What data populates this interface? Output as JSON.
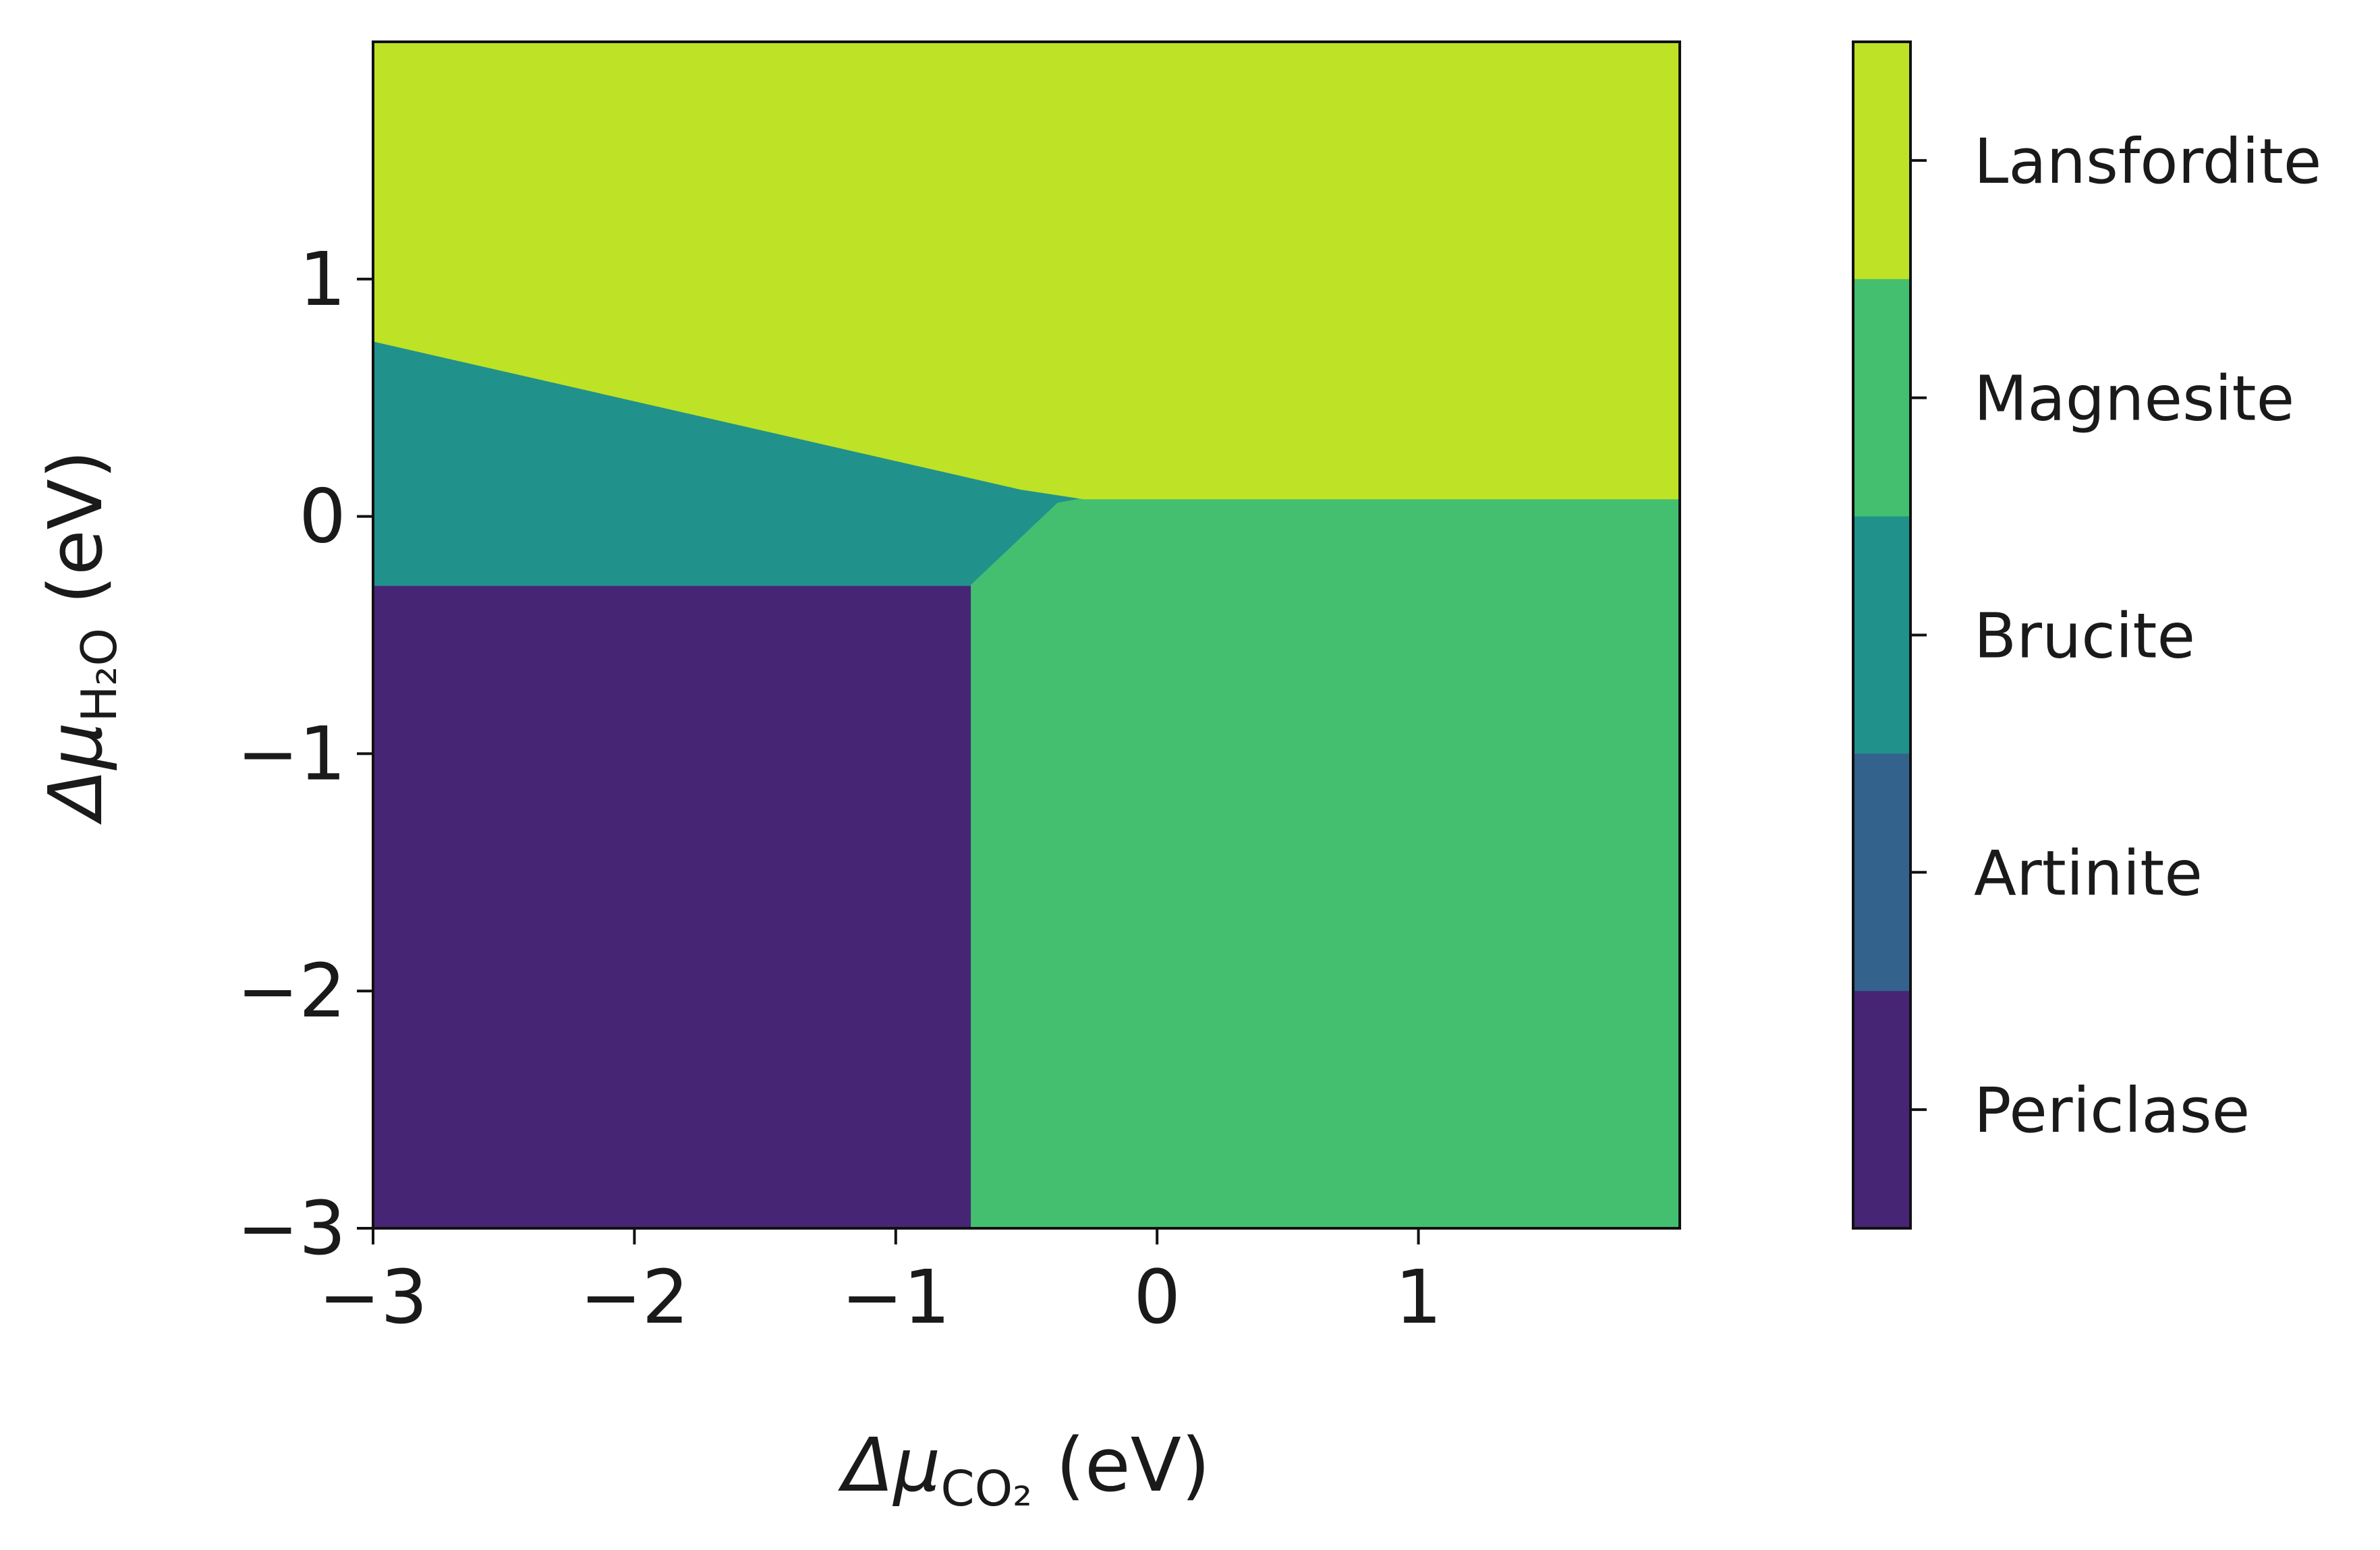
{
  "chart_data": {
    "type": "heatmap",
    "title": "",
    "xlabel": {
      "symbol": "Δμ",
      "subscript": "CO₂",
      "unit": " (eV)"
    },
    "ylabel": {
      "symbol": "Δμ",
      "subscript": "H₂O",
      "unit": " (eV)"
    },
    "xlim": [
      -3,
      2
    ],
    "ylim": [
      -3,
      2
    ],
    "xticks": [
      -3,
      -2,
      -1,
      0,
      1
    ],
    "yticks": [
      -3,
      -2,
      -1,
      0,
      1
    ],
    "xtick_labels": [
      "−3",
      "−2",
      "−1",
      "0",
      "1"
    ],
    "ytick_labels": [
      "−3",
      "−2",
      "−1",
      "0",
      "1"
    ],
    "grid": false,
    "legend_position": "right colorbar",
    "phases": [
      {
        "name": "Periclase",
        "color": "#472575",
        "polygon": [
          [
            -3,
            -3
          ],
          [
            -0.71,
            -3
          ],
          [
            -0.71,
            -0.29
          ],
          [
            -3,
            -0.29
          ]
        ]
      },
      {
        "name": "Artinite",
        "color": "#33628d",
        "polygon": [
          [
            -0.52,
            0.115
          ],
          [
            -0.28,
            0.075
          ],
          [
            -0.38,
            0.055
          ],
          [
            -0.44,
            0.085
          ]
        ]
      },
      {
        "name": "Brucite",
        "color": "#21918c",
        "polygon": [
          [
            -3,
            -0.29
          ],
          [
            -0.71,
            -0.29
          ],
          [
            -0.38,
            0.055
          ],
          [
            -0.28,
            0.075
          ],
          [
            -0.52,
            0.115
          ],
          [
            -3,
            0.74
          ]
        ]
      },
      {
        "name": "Magnesite",
        "color": "#44bf70",
        "polygon": [
          [
            -0.71,
            -3
          ],
          [
            2,
            -3
          ],
          [
            2,
            0.075
          ],
          [
            -0.28,
            0.075
          ],
          [
            -0.38,
            0.055
          ],
          [
            -0.71,
            -0.29
          ]
        ]
      },
      {
        "name": "Lansfordite",
        "color": "#bde226",
        "polygon": [
          [
            -3,
            0.74
          ],
          [
            -0.52,
            0.115
          ],
          [
            -0.28,
            0.075
          ],
          [
            2,
            0.075
          ],
          [
            2,
            2
          ],
          [
            -3,
            2
          ]
        ]
      }
    ],
    "legend": [
      {
        "name": "Lansfordite",
        "color": "#bde226"
      },
      {
        "name": "Magnesite",
        "color": "#44bf70"
      },
      {
        "name": "Brucite",
        "color": "#21918c"
      },
      {
        "name": "Artinite",
        "color": "#33628d"
      },
      {
        "name": "Periclase",
        "color": "#472575"
      }
    ]
  }
}
